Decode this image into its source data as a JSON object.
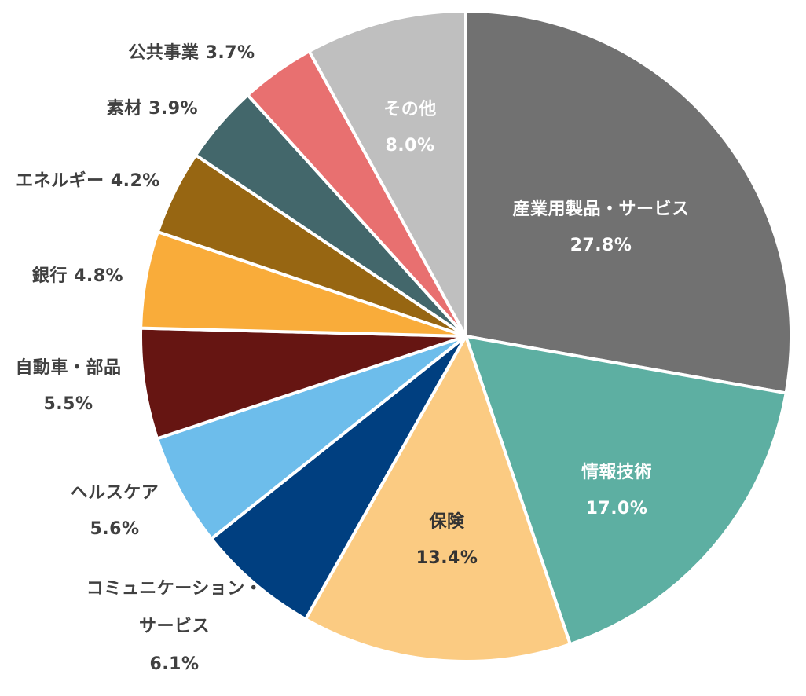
{
  "chart_data": {
    "type": "pie",
    "title": "",
    "start_angle_deg": 0,
    "direction": "clockwise",
    "center": [
      593,
      428
    ],
    "radius": 414,
    "slices": [
      {
        "label": "産業用製品・サービス",
        "value": 27.8,
        "display": "27.8%",
        "color": "#717171",
        "text_color": "light"
      },
      {
        "label": "情報技術",
        "value": 17.0,
        "display": "17.0%",
        "color": "#5DAFA2",
        "text_color": "light"
      },
      {
        "label": "保険",
        "value": 13.4,
        "display": "13.4%",
        "color": "#FBCB82",
        "text_color": "ins"
      },
      {
        "label": "コミュニケーション・サービス",
        "value": 6.1,
        "display": "6.1%",
        "color": "#003F80",
        "text_color": "dark"
      },
      {
        "label": "ヘルスケア",
        "value": 5.6,
        "display": "5.6%",
        "color": "#6DBDEB",
        "text_color": "dark"
      },
      {
        "label": "自動車・部品",
        "value": 5.5,
        "display": "5.5%",
        "color": "#661512",
        "text_color": "dark"
      },
      {
        "label": "銀行",
        "value": 4.8,
        "display": "4.8%",
        "color": "#F9AC3A",
        "text_color": "dark"
      },
      {
        "label": "エネルギー",
        "value": 4.2,
        "display": "4.2%",
        "color": "#976612",
        "text_color": "dark"
      },
      {
        "label": "素材",
        "value": 3.9,
        "display": "3.9%",
        "color": "#43676B",
        "text_color": "dark"
      },
      {
        "label": "公共事業",
        "value": 3.7,
        "display": "3.7%",
        "color": "#E87070",
        "text_color": "dark"
      },
      {
        "label": "その他",
        "value": 8.0,
        "display": "8.0%",
        "color": "#BFBFBF",
        "text_color": "light"
      }
    ],
    "legend": "none",
    "data_labels": "label + percent"
  },
  "labels": {
    "industrials": {
      "line1": "産業用製品・サービス",
      "line2": "27.8%"
    },
    "it": {
      "line1": "情報技術",
      "line2": "17.0%"
    },
    "insurance": {
      "line1": "保険",
      "line2": "13.4%"
    },
    "communication": {
      "line1": "コミュニケーション・",
      "line2": "サービス",
      "line3": "6.1%"
    },
    "healthcare": {
      "line1": "ヘルスケア",
      "line2": "5.6%"
    },
    "autos": {
      "line1": "自動車・部品",
      "line2": "5.5%"
    },
    "banks": {
      "line1": "銀行 4.8%"
    },
    "energy": {
      "line1": "エネルギー 4.2%"
    },
    "materials": {
      "line1": "素材  3.9%"
    },
    "utilities": {
      "line1": "公共事業  3.7%"
    },
    "other": {
      "line1": "その他",
      "line2": "8.0%"
    }
  }
}
